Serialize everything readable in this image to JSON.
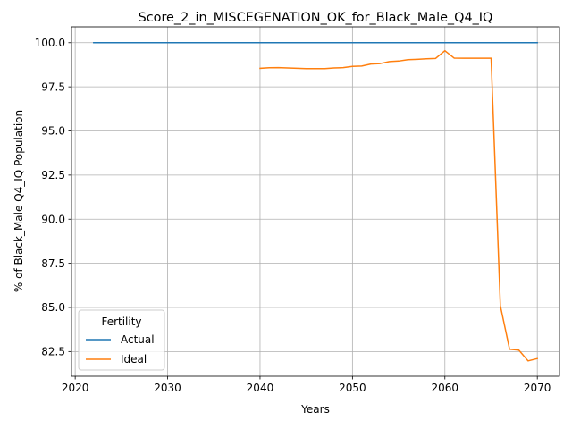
{
  "chart_data": {
    "type": "line",
    "title": "Score_2_in_MISCEGENATION_OK_for_Black_Male_Q4_IQ",
    "xlabel": "Years",
    "ylabel": "% of Black_Male Q4_IQ Population",
    "xlim": [
      2019.6,
      2072.4
    ],
    "ylim": [
      81.1,
      100.9
    ],
    "grid": true,
    "legend_placement": "lower left",
    "legend_title": "Fertility",
    "x_ticks": [
      2020,
      2030,
      2040,
      2050,
      2060,
      2070
    ],
    "x_tick_labels": [
      "2020",
      "2030",
      "2040",
      "2050",
      "2060",
      "2070"
    ],
    "y_ticks": [
      82.5,
      85.0,
      87.5,
      90.0,
      92.5,
      95.0,
      97.5,
      100.0
    ],
    "y_tick_labels": [
      "82.5",
      "85.0",
      "87.5",
      "90.0",
      "92.5",
      "95.0",
      "97.5",
      "100.0"
    ],
    "series": [
      {
        "name": "Actual",
        "color": "#1f77b4",
        "x": [
          2022,
          2070
        ],
        "y": [
          100.0,
          100.0
        ]
      },
      {
        "name": "Ideal",
        "color": "#ff7f0e",
        "x": [
          2040,
          2041,
          2042,
          2043,
          2044,
          2045,
          2046,
          2047,
          2048,
          2049,
          2050,
          2051,
          2052,
          2053,
          2054,
          2055,
          2056,
          2057,
          2058,
          2059,
          2060,
          2061,
          2062,
          2063,
          2064,
          2065,
          2066,
          2067,
          2068,
          2069,
          2070
        ],
        "y": [
          98.55,
          98.58,
          98.59,
          98.57,
          98.55,
          98.53,
          98.53,
          98.53,
          98.57,
          98.59,
          98.66,
          98.68,
          98.79,
          98.82,
          98.93,
          98.96,
          99.04,
          99.06,
          99.09,
          99.11,
          99.55,
          99.13,
          99.12,
          99.12,
          99.12,
          99.12,
          85.1,
          82.63,
          82.58,
          81.97,
          82.1
        ]
      }
    ]
  }
}
